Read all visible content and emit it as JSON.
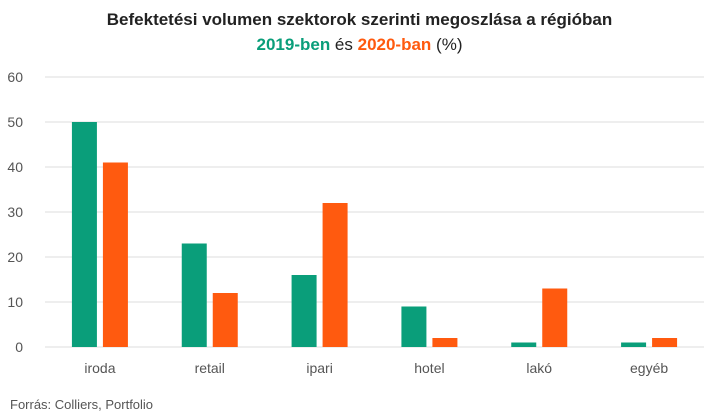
{
  "title": {
    "line1": "Befektetési volumen szektorok szerinti megoszlása a régióban",
    "series1_word": "2019-ben",
    "connector": " és ",
    "series2_word": "2020-ban",
    "suffix": " (%)"
  },
  "colors": {
    "series_2019": "#0a9e7a",
    "series_2020": "#ff5a0f",
    "grid": "#dddddd",
    "axis_text": "#555555"
  },
  "source": "Forrás: Colliers, Portfolio",
  "chart_data": {
    "type": "bar",
    "categories": [
      "iroda",
      "retail",
      "ipari",
      "hotel",
      "lakó",
      "egyéb"
    ],
    "series": [
      {
        "name": "2019-ben",
        "values": [
          50,
          23,
          16,
          9,
          1,
          1
        ]
      },
      {
        "name": "2020-ban",
        "values": [
          41,
          12,
          32,
          2,
          13,
          2
        ]
      }
    ],
    "ylim": [
      0,
      60
    ],
    "yticks": [
      0,
      10,
      20,
      30,
      40,
      50,
      60
    ],
    "grid": true,
    "legend": "in title"
  }
}
